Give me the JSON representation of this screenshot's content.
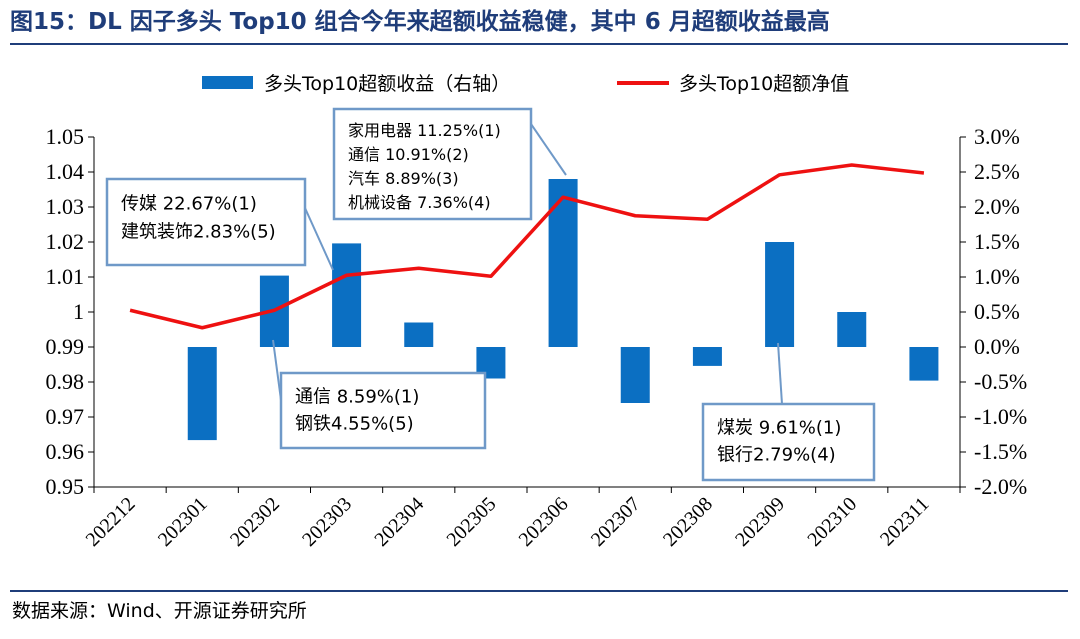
{
  "title": "图15：DL 因子多头 Top10 组合今年来超额收益稳健，其中 6 月超额收益最高",
  "source": "数据来源：Wind、开源证券研究所",
  "colors": {
    "bar": "#0b6fc2",
    "line": "#ee1111",
    "title": "#1f3d7a",
    "annotation_border": "#6f99c8"
  },
  "chart_data": {
    "type": "bar+line",
    "categories": [
      "202212",
      "202301",
      "202302",
      "202303",
      "202304",
      "202305",
      "202306",
      "202307",
      "202308",
      "202309",
      "202310",
      "202311"
    ],
    "series": [
      {
        "name": "多头Top10超额收益（右轴）",
        "type": "bar",
        "axis": "right",
        "values": [
          null,
          -1.33,
          1.02,
          1.48,
          0.35,
          -0.45,
          2.4,
          -0.8,
          -0.27,
          1.5,
          0.5,
          -0.48
        ]
      },
      {
        "name": "多头Top10超额净值",
        "type": "line",
        "axis": "left",
        "values": [
          1.0005,
          0.9955,
          1.0005,
          1.0105,
          1.0125,
          1.0102,
          1.0328,
          1.0275,
          1.0265,
          1.0392,
          1.042,
          1.0397
        ]
      }
    ],
    "y_left": {
      "min": 0.95,
      "max": 1.05,
      "ticks": [
        "0.95",
        "0.96",
        "0.97",
        "0.98",
        "0.99",
        "1",
        "1.01",
        "1.02",
        "1.03",
        "1.04",
        "1.05"
      ]
    },
    "y_right": {
      "min": -2.0,
      "max": 3.0,
      "ticks": [
        "-2.0%",
        "-1.5%",
        "-1.0%",
        "-0.5%",
        "0.0%",
        "0.5%",
        "1.0%",
        "1.5%",
        "2.0%",
        "2.5%",
        "3.0%"
      ]
    },
    "legend_position": "top-center",
    "grid": false,
    "annotations": [
      {
        "lines": [
          "传媒 22.67%(1)",
          "建筑装饰2.83%(5)"
        ],
        "target": "202303"
      },
      {
        "lines": [
          "家用电器 11.25%(1)",
          "通信 10.91%(2)",
          "汽车 8.89%(3)",
          "机械设备 7.36%(4)"
        ],
        "target": "202306"
      },
      {
        "lines": [
          "通信 8.59%(1)",
          "钢铁4.55%(5)"
        ],
        "target": "202302"
      },
      {
        "lines": [
          "煤炭 9.61%(1)",
          "银行2.79%(4)"
        ],
        "target": "202309"
      }
    ]
  }
}
